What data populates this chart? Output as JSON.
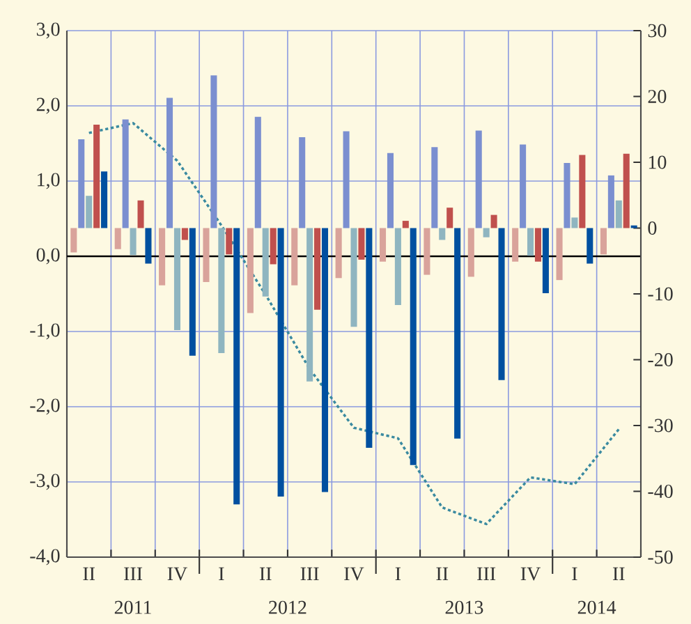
{
  "chart_data": {
    "type": "bar",
    "categories": [
      "II",
      "III",
      "IV",
      "I",
      "II",
      "III",
      "IV",
      "I",
      "II",
      "III",
      "IV",
      "I",
      "II"
    ],
    "annotations": [
      "2011",
      "2012",
      "2013",
      "2014"
    ],
    "series": [
      {
        "axis": "y2",
        "color": "#d9a39b",
        "values": [
          -3.7,
          -3.2,
          -8.7,
          -8.2,
          -12.9,
          -8.7,
          -7.6,
          -5.1,
          -7.1,
          -7.4,
          -5.1,
          -7.9,
          -4.0
        ]
      },
      {
        "axis": "y2",
        "color": "#7b8fd0",
        "values": [
          13.5,
          16.5,
          19.8,
          23.2,
          16.9,
          13.8,
          14.7,
          11.4,
          12.3,
          14.8,
          12.7,
          9.9,
          8.0
        ]
      },
      {
        "axis": "y2",
        "color": "#8fb5c0",
        "values": [
          4.9,
          -4.1,
          -15.5,
          -19.0,
          -10.4,
          -23.3,
          -15.0,
          -11.7,
          -1.8,
          -1.4,
          -4.2,
          1.6,
          4.2
        ]
      },
      {
        "axis": "y2",
        "color": "#c0504d",
        "values": [
          15.7,
          4.2,
          -1.8,
          -4.0,
          -5.5,
          -12.4,
          -4.8,
          1.1,
          3.1,
          2.0,
          -5.1,
          11.1,
          11.3
        ]
      },
      {
        "axis": "y2",
        "color": "#0050a0",
        "values": [
          8.6,
          -5.4,
          -19.4,
          -42.0,
          -40.8,
          -40.1,
          -33.4,
          -36.0,
          -32.0,
          -23.1,
          -9.9,
          -5.4,
          0.4
        ]
      },
      {
        "type": "line",
        "axis": "y",
        "color": "#3a8aa0",
        "line_style": "dotted",
        "values": [
          1.64,
          1.77,
          1.27,
          0.41,
          -0.51,
          -1.5,
          -2.28,
          -2.42,
          -3.34,
          -3.56,
          -2.94,
          -3.03,
          -2.3
        ]
      }
    ],
    "ylim": [
      -4,
      3
    ],
    "yticks": [
      {
        "value": -4,
        "label": "-4,0"
      },
      {
        "value": -3,
        "label": "-3,0"
      },
      {
        "value": -2,
        "label": "-2,0"
      },
      {
        "value": -1,
        "label": "-1,0"
      },
      {
        "value": 0,
        "label": "0,0"
      },
      {
        "value": 1,
        "label": "1,0"
      },
      {
        "value": 2,
        "label": "2,0"
      },
      {
        "value": 3,
        "label": "3,0"
      }
    ],
    "y2lim": [
      -50,
      30
    ],
    "y2ticks": [
      -50,
      -40,
      -30,
      -20,
      -10,
      0,
      10,
      20,
      30
    ],
    "ref_lines": [
      {
        "axis": "y",
        "value": 0,
        "color": "#000000"
      }
    ],
    "grid": true,
    "marker": "none"
  }
}
